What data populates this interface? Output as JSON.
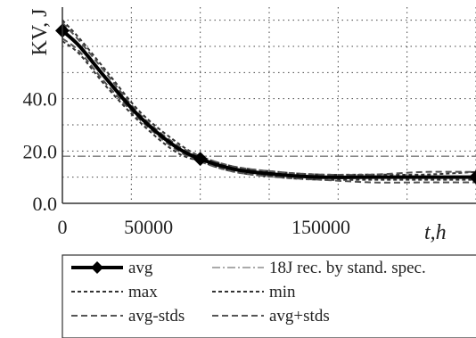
{
  "chart_data": {
    "type": "line",
    "xlabel": "t,h",
    "ylabel": "KV, J",
    "xlim": [
      0,
      240000
    ],
    "ylim": [
      0,
      75
    ],
    "x_ticks": [
      0,
      50000,
      150000
    ],
    "x_tick_labels": [
      "0",
      "50000",
      "150000"
    ],
    "y_ticks": [
      0,
      20,
      40
    ],
    "y_tick_labels": [
      "0.0",
      "20.0",
      "40.0"
    ],
    "grid": true,
    "legend_position": "bottom",
    "series": [
      {
        "name": "avg",
        "style": "solid-diamond",
        "color": "#000000",
        "x": [
          0,
          10000,
          25000,
          45000,
          65000,
          80000,
          100000,
          125000,
          150000,
          180000,
          210000,
          240000
        ],
        "y": [
          66,
          60,
          48,
          33,
          22,
          17,
          13,
          11,
          10,
          10,
          10,
          10
        ],
        "markers_at": [
          0,
          80000,
          240000
        ]
      },
      {
        "name": "max",
        "style": "dotted",
        "color": "#333333",
        "x": [
          0,
          10000,
          25000,
          45000,
          65000,
          80000,
          100000,
          125000,
          150000,
          180000,
          210000,
          240000
        ],
        "y": [
          70,
          63,
          51,
          35,
          24,
          18,
          14,
          12,
          11,
          11,
          11,
          12
        ]
      },
      {
        "name": "min",
        "style": "dotted",
        "color": "#333333",
        "x": [
          0,
          10000,
          25000,
          45000,
          65000,
          80000,
          100000,
          125000,
          150000,
          180000,
          210000,
          240000
        ],
        "y": [
          62,
          57,
          45,
          31,
          20,
          16,
          12,
          10,
          9,
          9,
          9,
          9
        ]
      },
      {
        "name": "avg-stds",
        "style": "dashed",
        "color": "#555555",
        "x": [
          0,
          10000,
          25000,
          45000,
          65000,
          80000,
          100000,
          125000,
          150000,
          180000,
          210000,
          240000
        ],
        "y": [
          63,
          58,
          46,
          32,
          21,
          16,
          12,
          10,
          9,
          8,
          8,
          8
        ]
      },
      {
        "name": "avg+stds",
        "style": "dashed",
        "color": "#555555",
        "x": [
          0,
          10000,
          25000,
          45000,
          65000,
          80000,
          100000,
          125000,
          150000,
          180000,
          210000,
          240000
        ],
        "y": [
          69,
          62,
          50,
          34,
          23,
          18,
          14,
          12,
          11,
          11,
          12,
          12
        ]
      },
      {
        "name": "18J rec. by stand. spec.",
        "style": "dash-dot",
        "color": "#777777",
        "x": [
          0,
          240000
        ],
        "y": [
          18,
          18
        ]
      }
    ]
  }
}
